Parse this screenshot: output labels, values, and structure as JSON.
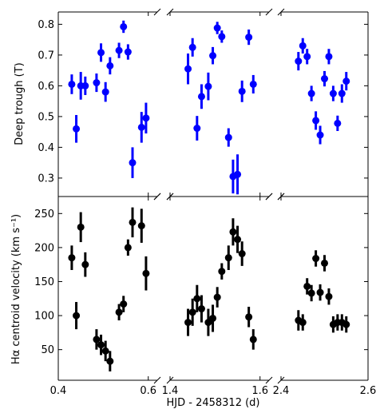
{
  "chart_data": {
    "type": "scatter",
    "xlabel": "HJD - 2458312 (d)",
    "x_segments": [
      {
        "xlim": [
          0.4,
          0.62
        ],
        "ticks": [
          0.4,
          0.6
        ],
        "tick_labels": [
          "0.4",
          "0.6"
        ]
      },
      {
        "xlim": [
          1.4,
          1.62
        ],
        "ticks": [
          1.4,
          1.6
        ],
        "tick_labels": [
          "1.4",
          "1.6"
        ]
      },
      {
        "xlim": [
          2.4,
          2.6
        ],
        "ticks": [
          2.4,
          2.6
        ],
        "tick_labels": [
          "2.4",
          "2.6"
        ]
      }
    ],
    "panels": [
      {
        "id": "top",
        "ylabel": "Deep trough (T)",
        "color": "#0000ff",
        "ylim": [
          0.24,
          0.84
        ],
        "yticks": [
          0.3,
          0.4,
          0.5,
          0.6,
          0.7,
          0.8
        ],
        "ytick_labels": [
          "0.3",
          "0.4",
          "0.5",
          "0.6",
          "0.7",
          "0.8"
        ],
        "points": [
          {
            "x": 0.43,
            "y": 0.605,
            "err": 0.032
          },
          {
            "x": 0.44,
            "y": 0.46,
            "err": 0.045
          },
          {
            "x": 0.45,
            "y": 0.6,
            "err": 0.045
          },
          {
            "x": 0.46,
            "y": 0.6,
            "err": 0.03
          },
          {
            "x": 0.485,
            "y": 0.61,
            "err": 0.03
          },
          {
            "x": 0.495,
            "y": 0.708,
            "err": 0.03
          },
          {
            "x": 0.505,
            "y": 0.58,
            "err": 0.032
          },
          {
            "x": 0.515,
            "y": 0.665,
            "err": 0.028
          },
          {
            "x": 0.535,
            "y": 0.715,
            "err": 0.025
          },
          {
            "x": 0.545,
            "y": 0.792,
            "err": 0.02
          },
          {
            "x": 0.555,
            "y": 0.71,
            "err": 0.025
          },
          {
            "x": 0.565,
            "y": 0.35,
            "err": 0.05
          },
          {
            "x": 0.585,
            "y": 0.465,
            "err": 0.05
          },
          {
            "x": 0.595,
            "y": 0.495,
            "err": 0.05
          },
          {
            "x": 1.44,
            "y": 0.655,
            "err": 0.05
          },
          {
            "x": 1.45,
            "y": 0.725,
            "err": 0.03
          },
          {
            "x": 1.46,
            "y": 0.462,
            "err": 0.04
          },
          {
            "x": 1.47,
            "y": 0.565,
            "err": 0.04
          },
          {
            "x": 1.485,
            "y": 0.598,
            "err": 0.045
          },
          {
            "x": 1.495,
            "y": 0.698,
            "err": 0.028
          },
          {
            "x": 1.505,
            "y": 0.788,
            "err": 0.02
          },
          {
            "x": 1.515,
            "y": 0.76,
            "err": 0.02
          },
          {
            "x": 1.53,
            "y": 0.432,
            "err": 0.03
          },
          {
            "x": 1.54,
            "y": 0.305,
            "err": 0.055
          },
          {
            "x": 1.55,
            "y": 0.312,
            "err": 0.065
          },
          {
            "x": 1.56,
            "y": 0.582,
            "err": 0.035
          },
          {
            "x": 1.575,
            "y": 0.758,
            "err": 0.025
          },
          {
            "x": 1.585,
            "y": 0.605,
            "err": 0.03
          },
          {
            "x": 2.44,
            "y": 0.68,
            "err": 0.03
          },
          {
            "x": 2.45,
            "y": 0.73,
            "err": 0.025
          },
          {
            "x": 2.46,
            "y": 0.695,
            "err": 0.025
          },
          {
            "x": 2.47,
            "y": 0.575,
            "err": 0.025
          },
          {
            "x": 2.48,
            "y": 0.487,
            "err": 0.03
          },
          {
            "x": 2.49,
            "y": 0.44,
            "err": 0.03
          },
          {
            "x": 2.5,
            "y": 0.623,
            "err": 0.025
          },
          {
            "x": 2.51,
            "y": 0.695,
            "err": 0.025
          },
          {
            "x": 2.52,
            "y": 0.575,
            "err": 0.025
          },
          {
            "x": 2.53,
            "y": 0.478,
            "err": 0.025
          },
          {
            "x": 2.54,
            "y": 0.575,
            "err": 0.03
          },
          {
            "x": 2.55,
            "y": 0.615,
            "err": 0.03
          }
        ]
      },
      {
        "id": "bottom",
        "ylabel": "Hα centroid velocity (km s⁻¹)",
        "color": "#000000",
        "ylim": [
          5,
          275
        ],
        "yticks": [
          50,
          100,
          150,
          200,
          250
        ],
        "ytick_labels": [
          "50",
          "100",
          "150",
          "200",
          "250"
        ],
        "points": [
          {
            "x": 0.43,
            "y": 185,
            "err": 18
          },
          {
            "x": 0.44,
            "y": 100,
            "err": 20
          },
          {
            "x": 0.45,
            "y": 230,
            "err": 22
          },
          {
            "x": 0.46,
            "y": 175,
            "err": 18
          },
          {
            "x": 0.485,
            "y": 65,
            "err": 15
          },
          {
            "x": 0.495,
            "y": 57,
            "err": 15
          },
          {
            "x": 0.505,
            "y": 48,
            "err": 15
          },
          {
            "x": 0.515,
            "y": 33,
            "err": 15
          },
          {
            "x": 0.535,
            "y": 105,
            "err": 12
          },
          {
            "x": 0.545,
            "y": 117,
            "err": 12
          },
          {
            "x": 0.555,
            "y": 200,
            "err": 12
          },
          {
            "x": 0.565,
            "y": 237,
            "err": 22
          },
          {
            "x": 0.585,
            "y": 232,
            "err": 25
          },
          {
            "x": 0.595,
            "y": 162,
            "err": 25
          },
          {
            "x": 1.44,
            "y": 90,
            "err": 20
          },
          {
            "x": 1.45,
            "y": 105,
            "err": 20
          },
          {
            "x": 1.46,
            "y": 125,
            "err": 20
          },
          {
            "x": 1.47,
            "y": 110,
            "err": 20
          },
          {
            "x": 1.485,
            "y": 90,
            "err": 20
          },
          {
            "x": 1.495,
            "y": 96,
            "err": 20
          },
          {
            "x": 1.505,
            "y": 127,
            "err": 15
          },
          {
            "x": 1.515,
            "y": 165,
            "err": 12
          },
          {
            "x": 1.53,
            "y": 185,
            "err": 18
          },
          {
            "x": 1.54,
            "y": 223,
            "err": 20
          },
          {
            "x": 1.55,
            "y": 212,
            "err": 20
          },
          {
            "x": 1.56,
            "y": 191,
            "err": 18
          },
          {
            "x": 1.575,
            "y": 98,
            "err": 15
          },
          {
            "x": 1.585,
            "y": 65,
            "err": 15
          },
          {
            "x": 2.44,
            "y": 93,
            "err": 15
          },
          {
            "x": 2.45,
            "y": 90,
            "err": 12
          },
          {
            "x": 2.46,
            "y": 143,
            "err": 12
          },
          {
            "x": 2.47,
            "y": 133,
            "err": 12
          },
          {
            "x": 2.48,
            "y": 184,
            "err": 12
          },
          {
            "x": 2.49,
            "y": 134,
            "err": 12
          },
          {
            "x": 2.5,
            "y": 177,
            "err": 12
          },
          {
            "x": 2.51,
            "y": 128,
            "err": 12
          },
          {
            "x": 2.52,
            "y": 87,
            "err": 12
          },
          {
            "x": 2.53,
            "y": 90,
            "err": 12
          },
          {
            "x": 2.54,
            "y": 90,
            "err": 12
          },
          {
            "x": 2.55,
            "y": 87,
            "err": 12
          }
        ]
      }
    ]
  }
}
